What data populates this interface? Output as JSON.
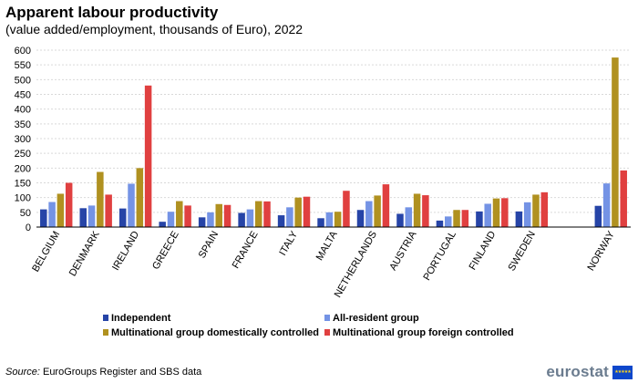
{
  "title": "Apparent labour productivity",
  "subtitle": "(value added/employment, thousands of Euro), 2022",
  "source_label": "Source:",
  "source_text": " EuroGroups Register and SBS data",
  "logo_text": "eurostat",
  "chart_data": {
    "type": "bar",
    "title": "Apparent labour productivity",
    "subtitle": "(value added/employment, thousands of Euro), 2022",
    "xlabel": "",
    "ylabel": "",
    "ylim": [
      0,
      600
    ],
    "yticks": [
      0,
      50,
      100,
      150,
      200,
      250,
      300,
      350,
      400,
      450,
      500,
      550,
      600
    ],
    "grid": true,
    "legend_position": "bottom",
    "categories": [
      "BELGIUM",
      "DENMARK",
      "IRELAND",
      "GREECE",
      "SPAIN",
      "FRANCE",
      "ITALY",
      "MALTA",
      "NETHERLANDS",
      "AUSTRIA",
      "PORTUGAL",
      "FINLAND",
      "SWEDEN",
      "",
      "NORWAY"
    ],
    "series": [
      {
        "name": "Independent",
        "color": "#2644A7",
        "values": [
          60,
          64,
          63,
          18,
          33,
          48,
          40,
          30,
          58,
          45,
          22,
          53,
          53,
          null,
          72
        ]
      },
      {
        "name": "All-resident group",
        "color": "#7493E5",
        "values": [
          85,
          73,
          147,
          52,
          50,
          60,
          67,
          50,
          88,
          67,
          36,
          79,
          84,
          null,
          148
        ]
      },
      {
        "name": "Multinational group domestically controlled",
        "color": "#B09120",
        "values": [
          113,
          187,
          200,
          88,
          78,
          88,
          100,
          52,
          107,
          113,
          58,
          97,
          110,
          null,
          575
        ]
      },
      {
        "name": "Multinational group foreign controlled",
        "color": "#E04040",
        "values": [
          150,
          110,
          480,
          73,
          75,
          87,
          103,
          123,
          145,
          108,
          58,
          98,
          118,
          null,
          192
        ]
      }
    ]
  }
}
